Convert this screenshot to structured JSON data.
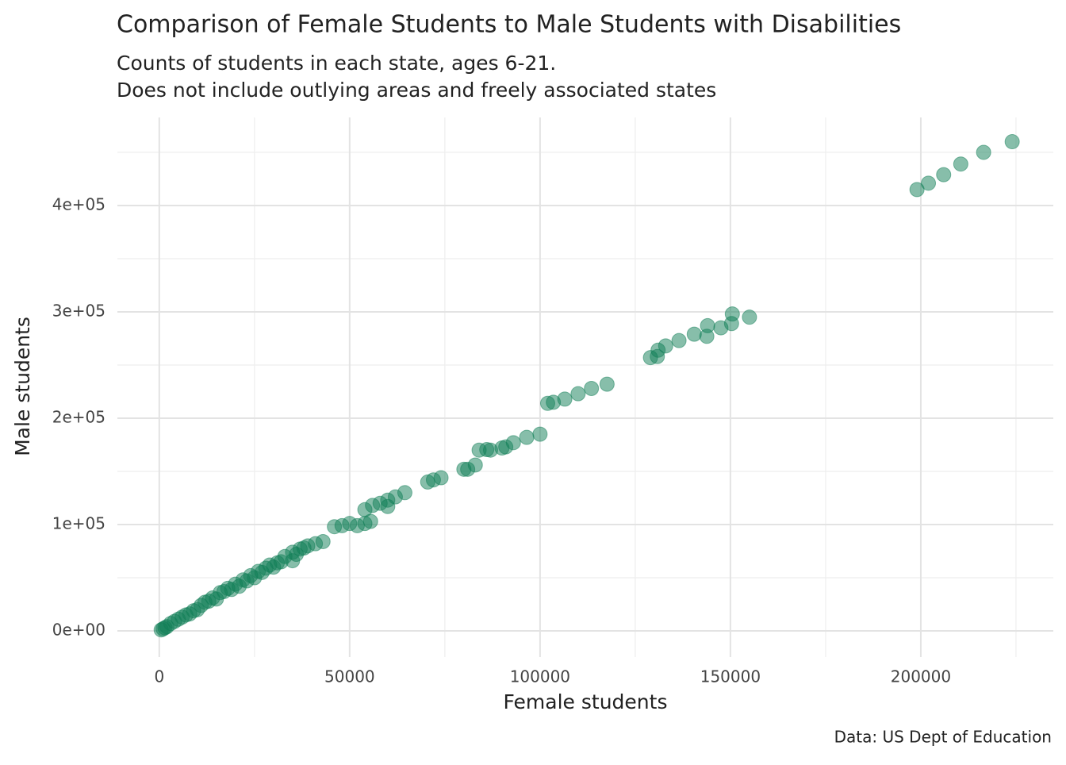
{
  "chart_data": {
    "type": "scatter",
    "title": "Comparison of Female Students to Male Students with Disabilities",
    "subtitle": [
      "Counts of students in each state, ages 6-21.",
      "Does not include outlying areas and freely associated states"
    ],
    "x_label": "Female students",
    "y_label": "Male students",
    "caption": "Data: US Dept of Education",
    "color": "#0f7d55",
    "opacity": 0.5,
    "grid": true,
    "xlim": [
      -11000,
      234800
    ],
    "ylim": [
      -24600,
      482800
    ],
    "xticks": [
      0,
      50000,
      100000,
      150000,
      200000
    ],
    "yticks": [
      {
        "value": 0,
        "label": "0e+00"
      },
      {
        "value": 100000,
        "label": "1e+05"
      },
      {
        "value": 200000,
        "label": "2e+05"
      },
      {
        "value": 300000,
        "label": "3e+05"
      },
      {
        "value": 400000,
        "label": "4e+05"
      }
    ],
    "x": [
      199000,
      202000,
      206000,
      210500,
      216500,
      224000,
      150500,
      155000,
      150300,
      147500,
      144000,
      143800,
      140500,
      136500,
      133000,
      131000,
      130800,
      129000,
      117600,
      113500,
      110000,
      106500,
      103500,
      102000,
      100000,
      96500,
      93000,
      91000,
      90000,
      87000,
      86000,
      84000,
      83000,
      80000,
      81000,
      74000,
      72000,
      70500,
      64500,
      62000,
      60000,
      58000,
      56000,
      54000,
      60000,
      55500,
      54000,
      52000,
      50000,
      48000,
      46000,
      43000,
      41000,
      39000,
      37000,
      35000,
      33000,
      35000,
      31000,
      29000,
      28000,
      26000,
      24000,
      22000,
      20000,
      18000,
      16000,
      14000,
      12000,
      9000,
      7000,
      5000,
      3000,
      1500,
      500,
      30000,
      27000,
      25000,
      21000,
      19000,
      15000,
      13000,
      10000,
      8000,
      6000,
      4000,
      2000,
      1000,
      32000,
      36000,
      38000,
      23000,
      17000,
      11000
    ],
    "values": [
      415000,
      421000,
      429000,
      439000,
      450000,
      460000,
      298000,
      295000,
      289000,
      285000,
      287000,
      277000,
      279000,
      273000,
      268000,
      264000,
      258000,
      257000,
      232000,
      228000,
      223000,
      218000,
      215000,
      214000,
      185000,
      182000,
      177000,
      173000,
      172000,
      170000,
      170500,
      170000,
      156000,
      152000,
      152000,
      144000,
      142000,
      140000,
      130000,
      126000,
      123000,
      120000,
      118000,
      114000,
      117000,
      103000,
      101000,
      99000,
      101000,
      99000,
      98000,
      84000,
      82000,
      80000,
      77000,
      74000,
      70000,
      66000,
      64000,
      62000,
      59000,
      56000,
      52000,
      48000,
      44000,
      40000,
      36000,
      31000,
      27000,
      19000,
      15000,
      11000,
      7000,
      3000,
      1000,
      60000,
      55000,
      50000,
      42000,
      39000,
      30000,
      28000,
      20000,
      16000,
      13000,
      9000,
      4000,
      2000,
      65000,
      72000,
      78000,
      47000,
      37000,
      24000
    ]
  }
}
